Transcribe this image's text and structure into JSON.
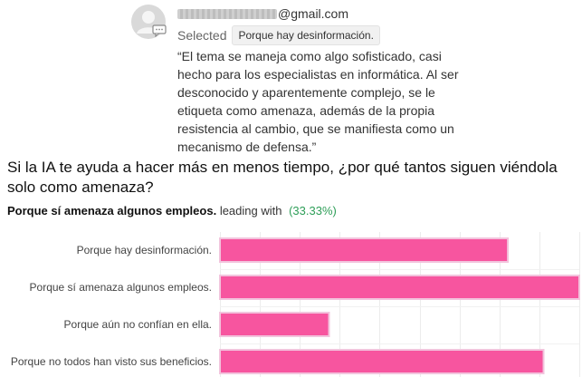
{
  "comment": {
    "email_domain": "@gmail.com",
    "selected_label": "Selected",
    "selected_value": "Porque hay desinformación.",
    "quote": "“El tema se maneja como algo sofisticado, casi hecho para los especialistas en informática. Al ser desconocido y aparentemente complejo, se le etiqueta como amenaza, además de la propia resistencia al cambio, que se manifiesta como un mecanismo de defensa.”",
    "avatar_icon": "user-avatar-icon",
    "comment_icon": "comment-bubble-icon"
  },
  "question": {
    "text": "Si la IA te ayuda a hacer más en menos tiempo, ¿por qué tantos siguen viéndola solo como amenaza?",
    "leader_name": "Porque sí amenaza algunos empleos.",
    "leader_text": "leading with",
    "leader_pct": "(33.33%)"
  },
  "colors": {
    "bar_fill": "#f7559f",
    "bar_border": "#f2c4dd",
    "leader_pct": "#2e9e58"
  },
  "chart_data": {
    "type": "bar",
    "orientation": "horizontal",
    "categories": [
      "Porque hay desinformación.",
      "Porque sí amenaza algunos empleos.",
      "Porque aún no confían en ella.",
      "Porque no todos han visto sus beneficios."
    ],
    "values": [
      26.67,
      33.33,
      10,
      30
    ],
    "xlim": [
      0,
      33.33
    ],
    "grid": true
  }
}
